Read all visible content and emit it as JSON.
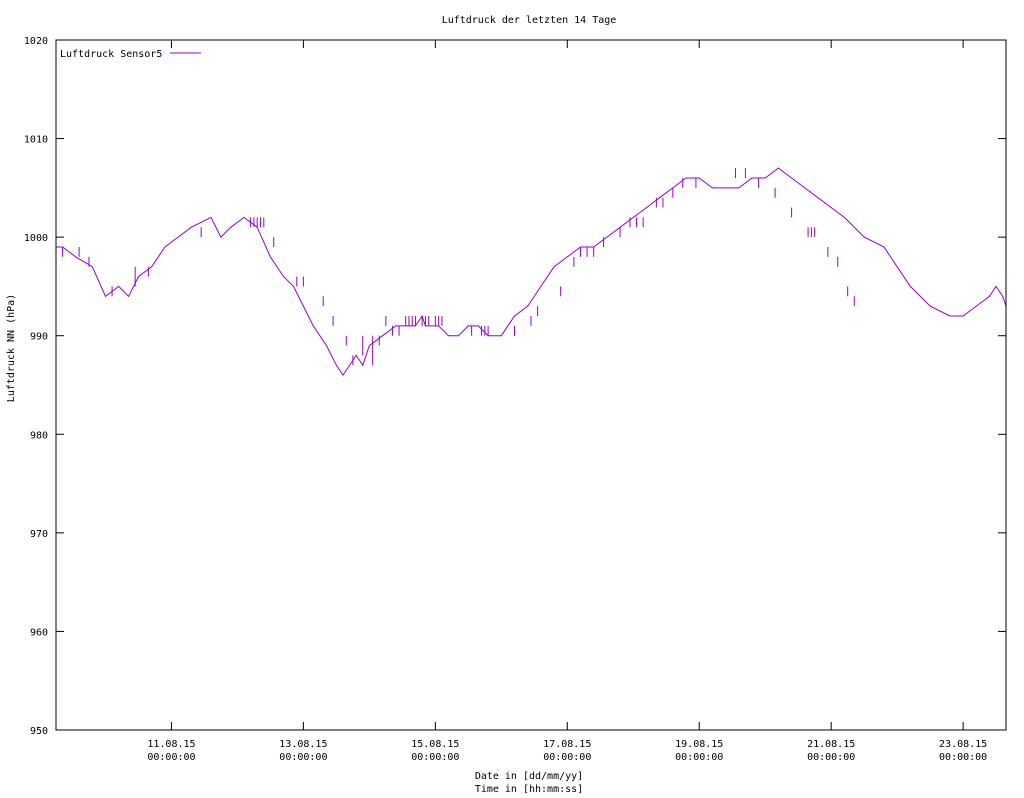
{
  "chart_data": {
    "type": "line",
    "title": "Luftdruck der letzten 14 Tage",
    "ylabel": "Luftdruck NN (hPa)",
    "xlabel": [
      "Date in [dd/mm/yy]",
      "Time in [hh:mm:ss]"
    ],
    "ylim": [
      950,
      1020
    ],
    "yticks": [
      950,
      960,
      970,
      980,
      990,
      1000,
      1010,
      1020
    ],
    "xlim": [
      9.25,
      23.65
    ],
    "xticks": [
      {
        "x": 11,
        "date": "11.08.15",
        "time": "00:00:00"
      },
      {
        "x": 13,
        "date": "13.08.15",
        "time": "00:00:00"
      },
      {
        "x": 15,
        "date": "15.08.15",
        "time": "00:00:00"
      },
      {
        "x": 17,
        "date": "17.08.15",
        "time": "00:00:00"
      },
      {
        "x": 19,
        "date": "19.08.15",
        "time": "00:00:00"
      },
      {
        "x": 21,
        "date": "21.08.15",
        "time": "00:00:00"
      },
      {
        "x": 23,
        "date": "23.08.15",
        "time": "00:00:00"
      }
    ],
    "grid": false,
    "legend_position": "top-left",
    "series": [
      {
        "name": "Luftdruck Sensor5",
        "color": "#9400d3",
        "x": [
          9.25,
          9.35,
          9.55,
          9.8,
          10.0,
          10.2,
          10.35,
          10.5,
          10.7,
          10.9,
          11.1,
          11.3,
          11.6,
          11.75,
          11.9,
          12.1,
          12.3,
          12.5,
          12.7,
          12.85,
          13.0,
          13.15,
          13.35,
          13.5,
          13.6,
          13.8,
          13.9,
          14.0,
          14.2,
          14.4,
          14.6,
          14.7,
          14.8,
          14.85,
          14.95,
          15.05,
          15.2,
          15.35,
          15.5,
          15.65,
          15.8,
          16.0,
          16.2,
          16.4,
          16.6,
          16.8,
          17.0,
          17.2,
          17.4,
          17.6,
          17.8,
          18.0,
          18.2,
          18.4,
          18.6,
          18.8,
          19.0,
          19.2,
          19.4,
          19.6,
          19.8,
          20.0,
          20.2,
          20.4,
          20.6,
          20.8,
          21.0,
          21.2,
          21.5,
          21.8,
          22.0,
          22.2,
          22.5,
          22.8,
          23.0,
          23.2,
          23.4,
          23.5,
          23.6,
          23.65
        ],
        "y": [
          999,
          999,
          998,
          997,
          994,
          995,
          994,
          996,
          997,
          999,
          1000,
          1001,
          1002,
          1000,
          1001,
          1002,
          1001,
          998,
          996,
          995,
          993,
          991,
          989,
          987,
          986,
          988,
          987,
          989,
          990,
          991,
          991,
          991,
          992,
          991,
          991,
          991,
          990,
          990,
          991,
          991,
          990,
          990,
          992,
          993,
          995,
          997,
          998,
          999,
          999,
          1000,
          1001,
          1002,
          1003,
          1004,
          1005,
          1006,
          1006,
          1005,
          1005,
          1005,
          1006,
          1006,
          1007,
          1006,
          1005,
          1004,
          1003,
          1002,
          1000,
          999,
          997,
          995,
          993,
          992,
          992,
          993,
          994,
          995,
          994,
          993
        ],
        "spikes": [
          [
            9.35,
            998,
            999
          ],
          [
            9.6,
            998,
            999
          ],
          [
            9.75,
            997,
            998
          ],
          [
            10.1,
            994,
            995
          ],
          [
            10.45,
            995,
            997
          ],
          [
            10.65,
            996,
            997
          ],
          [
            11.45,
            1000,
            1001
          ],
          [
            12.2,
            1001,
            1002
          ],
          [
            12.25,
            1001,
            1002
          ],
          [
            12.3,
            1001,
            1002
          ],
          [
            12.35,
            1001,
            1002
          ],
          [
            12.4,
            1001,
            1002
          ],
          [
            12.55,
            999,
            1000
          ],
          [
            12.9,
            995,
            996
          ],
          [
            13.0,
            995,
            996
          ],
          [
            13.3,
            993,
            994
          ],
          [
            13.45,
            991,
            992
          ],
          [
            13.65,
            989,
            990
          ],
          [
            13.75,
            987,
            988
          ],
          [
            13.9,
            988,
            990
          ],
          [
            14.05,
            987,
            990
          ],
          [
            14.15,
            989,
            990
          ],
          [
            14.25,
            991,
            992
          ],
          [
            14.35,
            990,
            991
          ],
          [
            14.45,
            990,
            991
          ],
          [
            14.55,
            991,
            992
          ],
          [
            14.6,
            991,
            992
          ],
          [
            14.65,
            991,
            992
          ],
          [
            14.7,
            991,
            992
          ],
          [
            14.8,
            991,
            992
          ],
          [
            14.85,
            991,
            992
          ],
          [
            14.9,
            991,
            992
          ],
          [
            15.0,
            991,
            992
          ],
          [
            15.05,
            991,
            992
          ],
          [
            15.1,
            991,
            992
          ],
          [
            15.55,
            990,
            991
          ],
          [
            15.7,
            990,
            991
          ],
          [
            15.75,
            990,
            991
          ],
          [
            15.8,
            990,
            991
          ],
          [
            16.2,
            990,
            991
          ],
          [
            16.45,
            991,
            992
          ],
          [
            16.55,
            992,
            993
          ],
          [
            16.9,
            994,
            995
          ],
          [
            17.1,
            997,
            998
          ],
          [
            17.2,
            998,
            999
          ],
          [
            17.3,
            998,
            999
          ],
          [
            17.4,
            998,
            999
          ],
          [
            17.55,
            999,
            1000
          ],
          [
            17.8,
            1000,
            1001
          ],
          [
            17.95,
            1001,
            1002
          ],
          [
            18.05,
            1001,
            1002
          ],
          [
            18.15,
            1001,
            1002
          ],
          [
            18.35,
            1003,
            1004
          ],
          [
            18.45,
            1003,
            1004
          ],
          [
            18.6,
            1004,
            1005
          ],
          [
            18.75,
            1005,
            1006
          ],
          [
            18.95,
            1005,
            1006
          ],
          [
            19.55,
            1006,
            1007
          ],
          [
            19.7,
            1006,
            1007
          ],
          [
            19.9,
            1005,
            1006
          ],
          [
            20.15,
            1004,
            1005
          ],
          [
            20.4,
            1002,
            1003
          ],
          [
            20.65,
            1000,
            1001
          ],
          [
            20.7,
            1000,
            1001
          ],
          [
            20.75,
            1000,
            1001
          ],
          [
            20.95,
            998,
            999
          ],
          [
            21.1,
            997,
            998
          ],
          [
            21.25,
            994,
            995
          ],
          [
            21.35,
            993,
            994
          ]
        ]
      }
    ]
  }
}
